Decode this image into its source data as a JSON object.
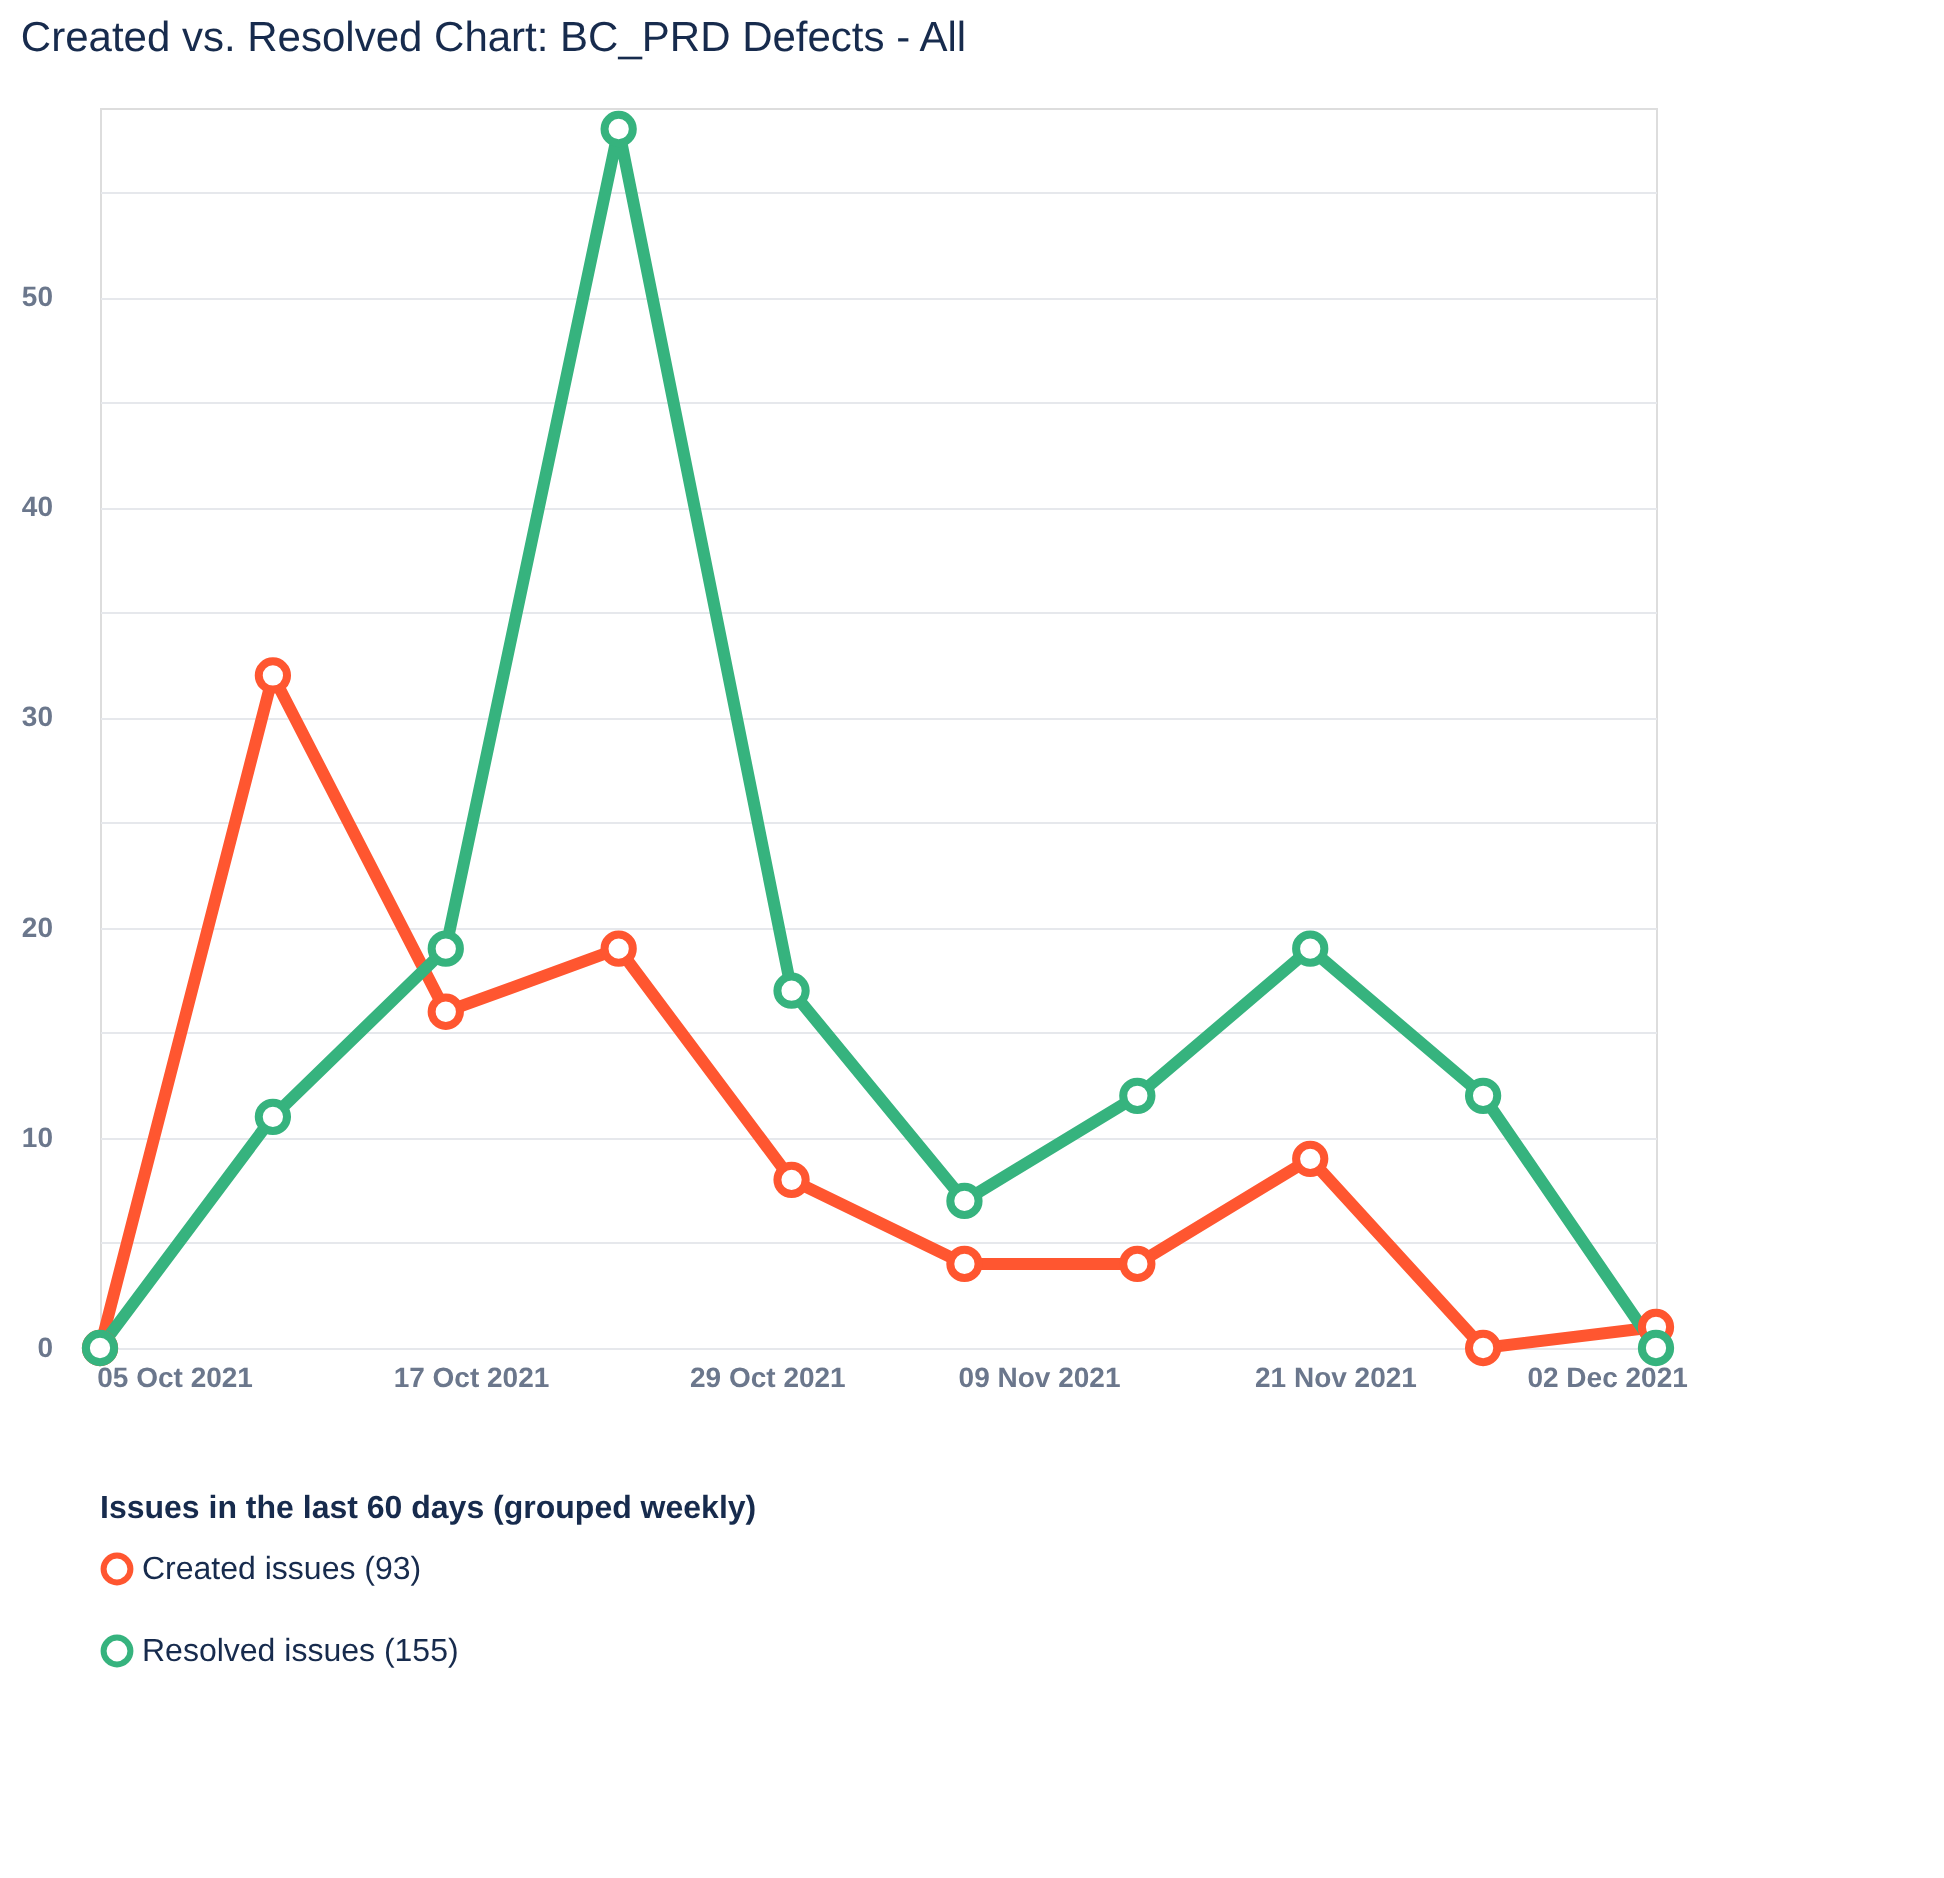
{
  "chart_data": {
    "type": "line",
    "title": "Created vs. Resolved Chart: BC_PRD Defects - All",
    "x": [
      "2021-10-02",
      "2021-10-09",
      "2021-10-16",
      "2021-10-23",
      "2021-10-30",
      "2021-11-06",
      "2021-11-13",
      "2021-11-20",
      "2021-11-27",
      "2021-12-04"
    ],
    "series": [
      {
        "name": "Created issues (93)",
        "color": "#ff5630",
        "values": [
          0,
          32,
          16,
          19,
          8,
          4,
          4,
          9,
          0,
          1
        ]
      },
      {
        "name": "Resolved issues (155)",
        "color": "#36b37e",
        "values": [
          0,
          11,
          19,
          58,
          17,
          7,
          12,
          19,
          12,
          0
        ]
      }
    ],
    "xlim": [
      "2021-10-02",
      "2021-12-04"
    ],
    "xticks": [
      {
        "value": "2021-10-05",
        "label": "05 Oct 2021"
      },
      {
        "value": "2021-10-17",
        "label": "17 Oct 2021"
      },
      {
        "value": "2021-10-29",
        "label": "29 Oct 2021"
      },
      {
        "value": "2021-11-09",
        "label": "09 Nov 2021"
      },
      {
        "value": "2021-11-21",
        "label": "21 Nov 2021"
      },
      {
        "value": "2021-12-02",
        "label": "02 Dec 2021"
      }
    ],
    "ylim": [
      0,
      59
    ],
    "yticks": [
      0,
      {
        "value": 5,
        "label": null
      },
      10,
      {
        "value": 15,
        "label": null
      },
      20,
      {
        "value": 25,
        "label": null
      },
      30,
      {
        "value": 35,
        "label": null
      },
      40,
      {
        "value": 45,
        "label": null
      },
      50,
      {
        "value": 55,
        "label": null
      }
    ],
    "grid": "y",
    "marker": "circle",
    "line_style": "solid",
    "legend": "bottom",
    "legend_title": "Issues in the last 60 days (grouped weekly)"
  }
}
